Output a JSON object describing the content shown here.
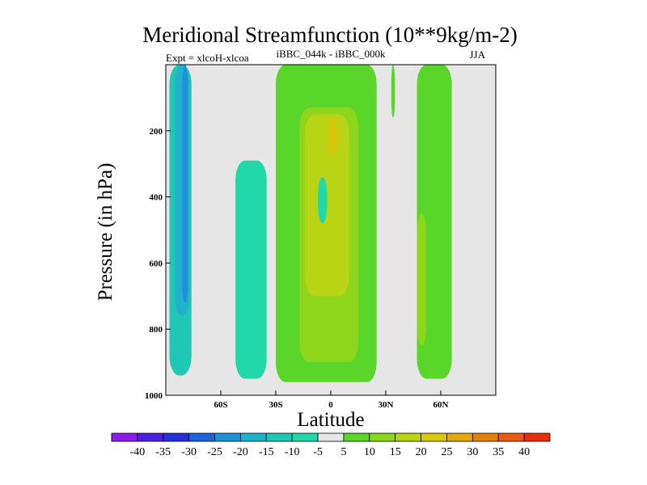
{
  "chart_data": {
    "type": "filled-contour",
    "title": "Meridional Streamfunction (10**9kg/m-2)",
    "left_string": "Expt = xlcoH-xlcoa",
    "center_string": "iBBC_044k - iBBC_000k",
    "right_string": "JJA",
    "xlabel": "Latitude",
    "ylabel": "Pressure (in hPa)",
    "xlim": [
      -90,
      90
    ],
    "ylim": [
      1000,
      0
    ],
    "x_ticks": [
      {
        "value": -60,
        "label": "60S"
      },
      {
        "value": -30,
        "label": "30S"
      },
      {
        "value": 0,
        "label": "0"
      },
      {
        "value": 30,
        "label": "30N"
      },
      {
        "value": 60,
        "label": "60N"
      }
    ],
    "y_ticks": [
      {
        "value": 200,
        "label": "200"
      },
      {
        "value": 400,
        "label": "400"
      },
      {
        "value": 600,
        "label": "600"
      },
      {
        "value": 800,
        "label": "800"
      },
      {
        "value": 1000,
        "label": "1000"
      }
    ],
    "background_color": "#e6e6e6",
    "contour_levels": [
      "-40",
      "-35",
      "-30",
      "-25",
      "-20",
      "-15",
      "-10",
      "-5",
      "5",
      "10",
      "15",
      "20",
      "25",
      "30",
      "35",
      "40"
    ],
    "colorbar_colors": [
      "#8a1be8",
      "#4a1fe0",
      "#2430d8",
      "#1f64d6",
      "#1f92d6",
      "#1fb2c8",
      "#1fc8b4",
      "#20d8a8",
      "#e6e6e6",
      "#5ad62a",
      "#8ed61c",
      "#b8d414",
      "#d6c80c",
      "#e0a80c",
      "#e2820e",
      "#e65a12",
      "#e8300c"
    ],
    "regions": [
      {
        "name": "sh-polar-band",
        "level": "-10",
        "color": "#1fc8b4",
        "lat": [
          -88,
          -76
        ],
        "p": [
          0,
          940
        ]
      },
      {
        "name": "sh-polar-core",
        "level": "-15",
        "color": "#1fb2c8",
        "lat": [
          -85,
          -77
        ],
        "p": [
          0,
          760
        ]
      },
      {
        "name": "sh-polar-inner",
        "level": "-20",
        "color": "#1f92d6",
        "lat": [
          -81,
          -78
        ],
        "p": [
          0,
          720
        ]
      },
      {
        "name": "sh-midlat-cell",
        "level": "-5",
        "color": "#20d8a8",
        "lat": [
          -52,
          -35
        ],
        "p": [
          290,
          950
        ]
      },
      {
        "name": "tropical-cell",
        "level": "5",
        "color": "#5ad62a",
        "lat": [
          -30,
          25
        ],
        "p": [
          0,
          960
        ]
      },
      {
        "name": "tropical-core",
        "level": "10",
        "color": "#8ed61c",
        "lat": [
          -17,
          15
        ],
        "p": [
          130,
          900
        ]
      },
      {
        "name": "tropical-max",
        "level": "15",
        "color": "#b8d414",
        "lat": [
          -14,
          10
        ],
        "p": [
          150,
          700
        ]
      },
      {
        "name": "upper-max",
        "level": "20",
        "color": "#d6c80c",
        "lat": [
          -2,
          4
        ],
        "p": [
          160,
          280
        ]
      },
      {
        "name": "equatorial-negative",
        "level": "-5",
        "color": "#20d8a8",
        "lat": [
          -7,
          -2
        ],
        "p": [
          340,
          480
        ]
      },
      {
        "name": "nh-30n-strip",
        "level": "5",
        "color": "#5ad62a",
        "lat": [
          33,
          35
        ],
        "p": [
          0,
          160
        ]
      },
      {
        "name": "nh-midlat-cell",
        "level": "5",
        "color": "#5ad62a",
        "lat": [
          47,
          66
        ],
        "p": [
          0,
          950
        ]
      },
      {
        "name": "nh-midlat-core",
        "level": "10",
        "color": "#8ed61c",
        "lat": [
          47,
          52
        ],
        "p": [
          450,
          850
        ]
      }
    ]
  }
}
